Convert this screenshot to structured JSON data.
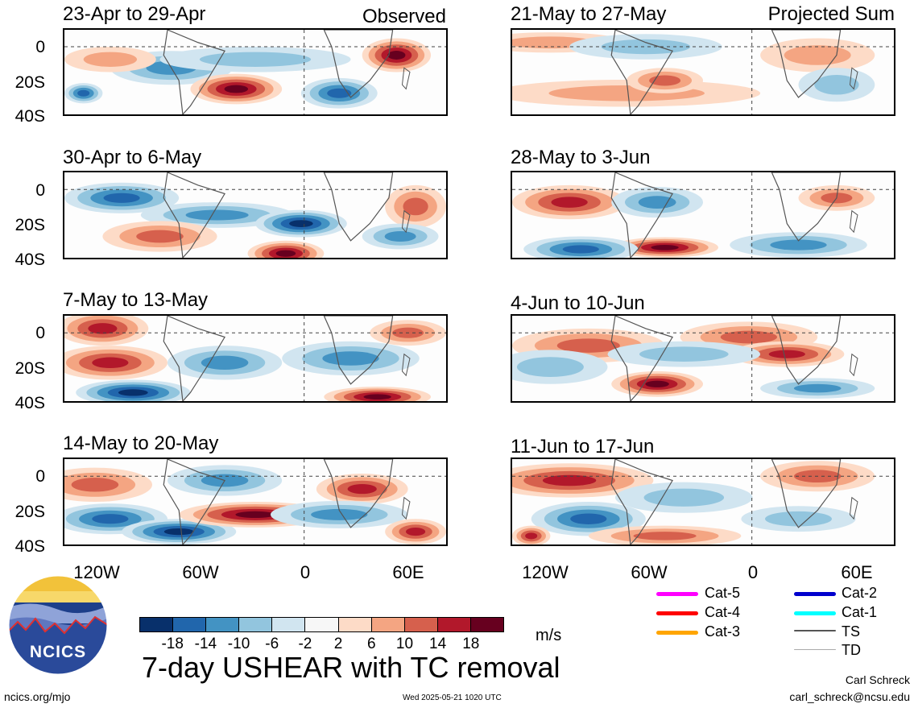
{
  "panels": [
    {
      "title": "23-Apr to 29-Apr",
      "tag": "Observed"
    },
    {
      "title": "21-May to 27-May",
      "tag": "Projected Sum"
    },
    {
      "title": "30-Apr to 6-May",
      "tag": ""
    },
    {
      "title": "28-May to 3-Jun",
      "tag": ""
    },
    {
      "title": "7-May to 13-May",
      "tag": ""
    },
    {
      "title": "4-Jun to 10-Jun",
      "tag": ""
    },
    {
      "title": "14-May to 20-May",
      "tag": ""
    },
    {
      "title": "11-Jun to 17-Jun",
      "tag": ""
    }
  ],
  "y_ticks": [
    "0",
    "20S",
    "40S"
  ],
  "x_ticks": [
    "120W",
    "60W",
    "0",
    "60E"
  ],
  "colorbar": {
    "colors": [
      "#08306b",
      "#2166ac",
      "#4393c3",
      "#92c5de",
      "#d1e5f0",
      "#f7f7f7",
      "#fddbc7",
      "#f4a582",
      "#d6604d",
      "#b2182b",
      "#67001f"
    ],
    "labels": [
      "-18",
      "-14",
      "-10",
      "-6",
      "-2",
      "2",
      "6",
      "10",
      "14",
      "18"
    ],
    "units": "m/s"
  },
  "legend": [
    {
      "label": "Cat-5",
      "color": "#ff00ff"
    },
    {
      "label": "Cat-2",
      "color": "#0000cd"
    },
    {
      "label": "Cat-4",
      "color": "#ff0000"
    },
    {
      "label": "Cat-1",
      "color": "#00ffff"
    },
    {
      "label": "Cat-3",
      "color": "#ffa500"
    },
    {
      "label": "TS",
      "color": "#555555"
    },
    {
      "label": "TD",
      "color": "#aaaaaa"
    }
  ],
  "main_title": "7-day USHEAR with TC removal",
  "logo_text": "NCICS",
  "footer": {
    "website": "ncics.org/mjo",
    "timestamp": "Wed 2025-05-21 1020 UTC",
    "author": "Carl Schreck",
    "email": "carl_schreck@ncsu.edu"
  }
}
